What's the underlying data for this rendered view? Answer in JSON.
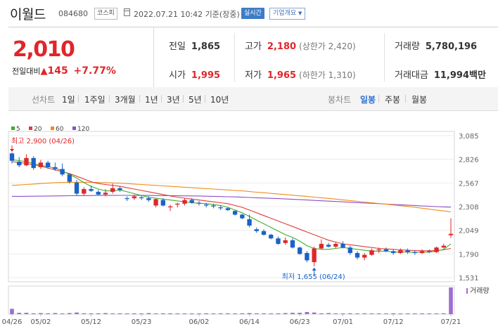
{
  "header": {
    "stock_name": "이월드",
    "stock_code": "084680",
    "market": "코스피",
    "timestamp": "2022.07.21 10:42 기준(장중)",
    "live_label": "실시간",
    "company_info_label": "기업개요"
  },
  "summary": {
    "current_price": "2,010",
    "change_label": "전일대비",
    "change_amount": "145",
    "change_percent": "+7.77%",
    "prev_close_label": "전일",
    "prev_close": "1,865",
    "open_label": "시가",
    "open": "1,995",
    "high_label": "고가",
    "high": "2,180",
    "upper_limit_label": "(상한가 2,420)",
    "low_label": "저가",
    "low": "1,965",
    "lower_limit_label": "(하한가 1,310)",
    "volume_label": "거래량",
    "volume": "5,780,196",
    "amount_label": "거래대금",
    "amount": "11,994",
    "amount_unit": "백만"
  },
  "period_tabs": {
    "line_label": "선차트",
    "items": [
      "1일",
      "1주일",
      "3개월",
      "1년",
      "3년",
      "5년",
      "10년"
    ],
    "candle_label": "봉차트",
    "candle_items": [
      "일봉",
      "주봉",
      "월봉"
    ],
    "active_candle": "일봉"
  },
  "colors": {
    "up": "#e0262a",
    "down": "#1a62c9",
    "ma5": "#3fae2a",
    "ma20": "#e23b3b",
    "ma60": "#ef8c1a",
    "ma120": "#8d4fc4",
    "volume": "#9b6fcf"
  },
  "chart_data": {
    "type": "candlestick",
    "legend": [
      {
        "name": "5",
        "color": "#3fae2a"
      },
      {
        "name": "20",
        "color": "#e23b3b"
      },
      {
        "name": "60",
        "color": "#ef8c1a"
      },
      {
        "name": "120",
        "color": "#8d4fc4"
      }
    ],
    "y_ticks": [
      1531,
      1790,
      2049,
      2308,
      2567,
      2826,
      3085
    ],
    "y_tick_labels": [
      "1,531",
      "1,790",
      "2,049",
      "2,308",
      "2,567",
      "2,826",
      "3,085"
    ],
    "ylim": [
      1531,
      3085
    ],
    "x_tick_labels": [
      "04/26",
      "05/02",
      "05/12",
      "05/23",
      "06/02",
      "06/14",
      "06/23",
      "07/01",
      "07/12",
      "07/21"
    ],
    "x_tick_index": [
      0,
      4,
      11,
      18,
      26,
      33,
      40,
      46,
      53,
      61
    ],
    "high_annotation": "최고 2,900 (04/26)",
    "low_annotation": "최저 1,655 (06/24)",
    "volume_label": "거래량",
    "candles": [
      {
        "o": 2890,
        "h": 2900,
        "l": 2780,
        "c": 2810
      },
      {
        "o": 2800,
        "h": 2850,
        "l": 2740,
        "c": 2760
      },
      {
        "o": 2760,
        "h": 2880,
        "l": 2750,
        "c": 2840
      },
      {
        "o": 2840,
        "h": 2860,
        "l": 2710,
        "c": 2730
      },
      {
        "o": 2740,
        "h": 2820,
        "l": 2720,
        "c": 2790
      },
      {
        "o": 2790,
        "h": 2810,
        "l": 2720,
        "c": 2740
      },
      {
        "o": 2740,
        "h": 2790,
        "l": 2700,
        "c": 2720
      },
      {
        "o": 2720,
        "h": 2780,
        "l": 2640,
        "c": 2660
      },
      {
        "o": 2660,
        "h": 2670,
        "l": 2560,
        "c": 2580
      },
      {
        "o": 2570,
        "h": 2600,
        "l": 2430,
        "c": 2450
      },
      {
        "o": 2450,
        "h": 2520,
        "l": 2430,
        "c": 2500
      },
      {
        "o": 2500,
        "h": 2540,
        "l": 2470,
        "c": 2480
      },
      {
        "o": 2470,
        "h": 2490,
        "l": 2430,
        "c": 2440
      },
      {
        "o": 2440,
        "h": 2500,
        "l": 2420,
        "c": 2460
      },
      {
        "o": 2470,
        "h": 2560,
        "l": 2450,
        "c": 2510
      },
      {
        "o": 2510,
        "h": 2530,
        "l": 2470,
        "c": 2490
      },
      {
        "o": 2400,
        "h": 2420,
        "l": 2370,
        "c": 2395
      },
      {
        "o": 2400,
        "h": 2440,
        "l": 2380,
        "c": 2420
      },
      {
        "o": 2410,
        "h": 2430,
        "l": 2380,
        "c": 2400
      },
      {
        "o": 2400,
        "h": 2420,
        "l": 2360,
        "c": 2380
      },
      {
        "o": 2320,
        "h": 2400,
        "l": 2300,
        "c": 2390
      },
      {
        "o": 2380,
        "h": 2400,
        "l": 2310,
        "c": 2320
      },
      {
        "o": 2300,
        "h": 2330,
        "l": 2260,
        "c": 2310
      },
      {
        "o": 2330,
        "h": 2350,
        "l": 2300,
        "c": 2340
      },
      {
        "o": 2340,
        "h": 2400,
        "l": 2320,
        "c": 2380
      },
      {
        "o": 2380,
        "h": 2400,
        "l": 2340,
        "c": 2350
      },
      {
        "o": 2350,
        "h": 2370,
        "l": 2320,
        "c": 2340
      },
      {
        "o": 2330,
        "h": 2350,
        "l": 2300,
        "c": 2320
      },
      {
        "o": 2320,
        "h": 2340,
        "l": 2290,
        "c": 2310
      },
      {
        "o": 2300,
        "h": 2320,
        "l": 2270,
        "c": 2290
      },
      {
        "o": 2290,
        "h": 2300,
        "l": 2260,
        "c": 2270
      },
      {
        "o": 2260,
        "h": 2270,
        "l": 2210,
        "c": 2220
      },
      {
        "o": 2220,
        "h": 2230,
        "l": 2170,
        "c": 2180
      },
      {
        "o": 2170,
        "h": 2220,
        "l": 2080,
        "c": 2100
      },
      {
        "o": 2060,
        "h": 2080,
        "l": 2020,
        "c": 2040
      },
      {
        "o": 2040,
        "h": 2060,
        "l": 1990,
        "c": 2000
      },
      {
        "o": 2000,
        "h": 2010,
        "l": 1950,
        "c": 1960
      },
      {
        "o": 1960,
        "h": 1980,
        "l": 1890,
        "c": 1900
      },
      {
        "o": 1910,
        "h": 1970,
        "l": 1890,
        "c": 1940
      },
      {
        "o": 1940,
        "h": 1960,
        "l": 1850,
        "c": 1860
      },
      {
        "o": 1860,
        "h": 1870,
        "l": 1780,
        "c": 1790
      },
      {
        "o": 1800,
        "h": 1820,
        "l": 1700,
        "c": 1720
      },
      {
        "o": 1700,
        "h": 1870,
        "l": 1655,
        "c": 1850
      },
      {
        "o": 1850,
        "h": 1950,
        "l": 1840,
        "c": 1900
      },
      {
        "o": 1890,
        "h": 1910,
        "l": 1860,
        "c": 1870
      },
      {
        "o": 1870,
        "h": 1920,
        "l": 1850,
        "c": 1900
      },
      {
        "o": 1900,
        "h": 1930,
        "l": 1850,
        "c": 1860
      },
      {
        "o": 1860,
        "h": 1880,
        "l": 1780,
        "c": 1800
      },
      {
        "o": 1800,
        "h": 1820,
        "l": 1730,
        "c": 1750
      },
      {
        "o": 1750,
        "h": 1800,
        "l": 1720,
        "c": 1780
      },
      {
        "o": 1780,
        "h": 1850,
        "l": 1770,
        "c": 1830
      },
      {
        "o": 1830,
        "h": 1860,
        "l": 1800,
        "c": 1840
      },
      {
        "o": 1840,
        "h": 1860,
        "l": 1810,
        "c": 1820
      },
      {
        "o": 1820,
        "h": 1840,
        "l": 1780,
        "c": 1800
      },
      {
        "o": 1800,
        "h": 1850,
        "l": 1790,
        "c": 1830
      },
      {
        "o": 1830,
        "h": 1850,
        "l": 1790,
        "c": 1810
      },
      {
        "o": 1810,
        "h": 1830,
        "l": 1780,
        "c": 1800
      },
      {
        "o": 1800,
        "h": 1840,
        "l": 1790,
        "c": 1820
      },
      {
        "o": 1820,
        "h": 1840,
        "l": 1800,
        "c": 1810
      },
      {
        "o": 1810,
        "h": 1870,
        "l": 1800,
        "c": 1860
      },
      {
        "o": 1860,
        "h": 1900,
        "l": 1850,
        "c": 1880
      },
      {
        "o": 1995,
        "h": 2180,
        "l": 1965,
        "c": 2010
      }
    ],
    "ma5": [
      2820,
      2812,
      2800,
      2780,
      2760,
      2745,
      2730,
      2700,
      2660,
      2620,
      2570,
      2530,
      2500,
      2480,
      2480,
      2490,
      2470,
      2450,
      2430,
      2410,
      2400,
      2390,
      2380,
      2370,
      2360,
      2350,
      2345,
      2340,
      2330,
      2320,
      2300,
      2270,
      2240,
      2200,
      2160,
      2120,
      2080,
      2040,
      2000,
      1970,
      1930,
      1880,
      1850,
      1840,
      1840,
      1850,
      1860,
      1850,
      1840,
      1830,
      1820,
      1820,
      1820,
      1810,
      1810,
      1810,
      1808,
      1808,
      1810,
      1820,
      1840,
      1900
    ],
    "ma20": [
      2800,
      2790,
      2780,
      2765,
      2750,
      2730,
      2710,
      2690,
      2670,
      2640,
      2610,
      2580,
      2560,
      2550,
      2540,
      2530,
      2515,
      2500,
      2485,
      2470,
      2455,
      2440,
      2425,
      2412,
      2400,
      2390,
      2380,
      2370,
      2360,
      2350,
      2340,
      2320,
      2300,
      2270,
      2240,
      2210,
      2180,
      2150,
      2120,
      2090,
      2060,
      2030,
      2000,
      1970,
      1940,
      1920,
      1900,
      1890,
      1880,
      1870,
      1860,
      1850,
      1845,
      1840,
      1835,
      1830,
      1828,
      1825,
      1825,
      1828,
      1835,
      1850
    ],
    "ma60": [
      2540,
      2545,
      2550,
      2555,
      2560,
      2565,
      2570,
      2572,
      2574,
      2575,
      2575,
      2574,
      2572,
      2570,
      2567,
      2564,
      2560,
      2555,
      2550,
      2545,
      2540,
      2535,
      2530,
      2525,
      2520,
      2515,
      2510,
      2505,
      2500,
      2495,
      2490,
      2485,
      2480,
      2473,
      2466,
      2460,
      2453,
      2446,
      2440,
      2433,
      2426,
      2420,
      2412,
      2405,
      2398,
      2390,
      2382,
      2374,
      2366,
      2358,
      2350,
      2342,
      2334,
      2326,
      2318,
      2310,
      2300,
      2290,
      2280,
      2270,
      2260,
      2250
    ],
    "ma120": [
      2420,
      2420,
      2421,
      2422,
      2423,
      2424,
      2425,
      2426,
      2427,
      2428,
      2428,
      2429,
      2430,
      2430,
      2430,
      2431,
      2431,
      2430,
      2430,
      2430,
      2429,
      2429,
      2428,
      2427,
      2426,
      2425,
      2424,
      2422,
      2420,
      2418,
      2416,
      2414,
      2411,
      2408,
      2405,
      2402,
      2399,
      2396,
      2392,
      2388,
      2384,
      2380,
      2376,
      2372,
      2368,
      2364,
      2360,
      2356,
      2352,
      2348,
      2344,
      2340,
      2336,
      2332,
      2328,
      2324,
      2320,
      2316,
      2312,
      2308,
      2305,
      2302
    ],
    "volumes": [
      0.2,
      0.05,
      0.05,
      0.03,
      0.04,
      0.03,
      0.04,
      0.02,
      0.04,
      0.06,
      0.03,
      0.02,
      0.03,
      0.04,
      0.02,
      0.03,
      0.02,
      0.03,
      0.02,
      0.04,
      0.02,
      0.03,
      0.03,
      0.02,
      0.02,
      0.02,
      0.02,
      0.03,
      0.02,
      0.03,
      0.03,
      0.02,
      0.03,
      0.04,
      0.03,
      0.03,
      0.02,
      0.03,
      0.04,
      0.05,
      0.05,
      0.08,
      0.06,
      0.03,
      0.04,
      0.02,
      0.02,
      0.03,
      0.02,
      0.03,
      0.02,
      0.02,
      0.02,
      0.03,
      0.02,
      0.02,
      0.02,
      0.02,
      0.02,
      0.02,
      0.03,
      1.0
    ]
  }
}
